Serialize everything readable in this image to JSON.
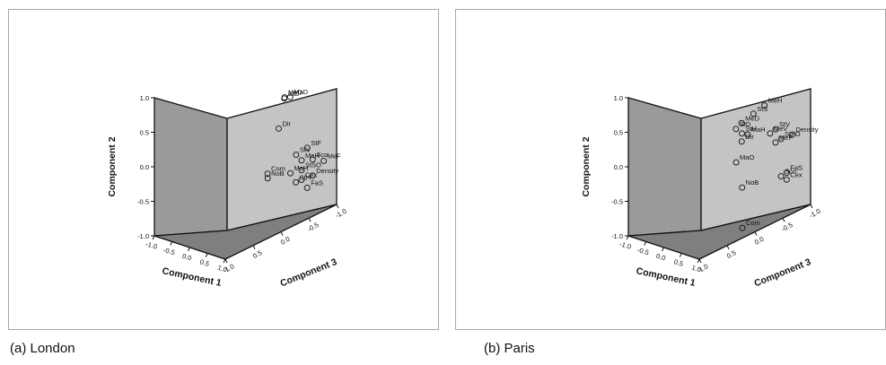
{
  "chart_data": [
    {
      "type": "scatter",
      "caption": "(a) London",
      "xlabel": "Component 1",
      "ylabel": "Component 2",
      "zlabel": "Component 3",
      "xlim": [
        -1.0,
        1.0
      ],
      "ylim": [
        -1.0,
        1.0
      ],
      "zlim": [
        -1.0,
        1.0
      ],
      "yticks": [
        "-1.0",
        "-0.5",
        "0.0",
        "0.5",
        "1.0"
      ],
      "xticks": [
        "-1.0",
        "-0.5",
        "0.0",
        "0.5",
        "1.0"
      ],
      "zticks": [
        "1.0",
        "0.5",
        "0.0",
        "-0.5",
        "-1.0"
      ],
      "points": [
        {
          "label": "MeD",
          "x": -0.1,
          "y": 0.95,
          "z": -0.1
        },
        {
          "label": "MaD",
          "x": 0.1,
          "y": 0.97,
          "z": -0.2
        },
        {
          "label": "StD",
          "x": -0.3,
          "y": 0.9,
          "z": -0.1
        },
        {
          "label": "Dir",
          "x": -0.5,
          "y": 0.45,
          "z": 0.0
        },
        {
          "label": "Com",
          "x": -0.7,
          "y": -0.2,
          "z": 0.2
        },
        {
          "label": "NoB",
          "x": -0.6,
          "y": -0.25,
          "z": 0.2
        },
        {
          "label": "StV",
          "x": 0.6,
          "y": 0.2,
          "z": -0.3
        },
        {
          "label": "StF",
          "x": 0.7,
          "y": 0.28,
          "z": -0.5
        },
        {
          "label": "MeH",
          "x": 0.6,
          "y": 0.1,
          "z": -0.4
        },
        {
          "label": "Sco",
          "x": 0.75,
          "y": 0.1,
          "z": -0.6
        },
        {
          "label": "MeF",
          "x": 0.8,
          "y": 0.05,
          "z": -0.8
        },
        {
          "label": "MaH",
          "x": 0.3,
          "y": -0.1,
          "z": -0.2
        },
        {
          "label": "StSO",
          "x": 0.55,
          "y": -0.05,
          "z": -0.4
        },
        {
          "label": "StH",
          "x": 0.3,
          "y": -0.25,
          "z": -0.3
        },
        {
          "label": "Cex",
          "x": 0.5,
          "y": -0.2,
          "z": -0.4
        },
        {
          "label": "Density",
          "x": 0.65,
          "y": -0.15,
          "z": -0.6
        },
        {
          "label": "FaS",
          "x": 0.7,
          "y": -0.3,
          "z": -0.5
        }
      ]
    },
    {
      "type": "scatter",
      "caption": "(b) Paris",
      "xlabel": "Component 1",
      "ylabel": "Component 2",
      "zlabel": "Component 3",
      "xlim": [
        -1.0,
        1.0
      ],
      "ylim": [
        -1.0,
        1.0
      ],
      "zlim": [
        -1.0,
        1.0
      ],
      "yticks": [
        "-1.0",
        "-0.5",
        "0.0",
        "0.5",
        "1.0"
      ],
      "xticks": [
        "-1.0",
        "-0.5",
        "0.0",
        "0.5",
        "1.0"
      ],
      "zticks": [
        "1.0",
        "0.5",
        "0.0",
        "-0.5",
        "-1.0"
      ],
      "points": [
        {
          "label": "MeH",
          "x": 0.4,
          "y": 0.9,
          "z": -0.2
        },
        {
          "label": "StS",
          "x": 0.3,
          "y": 0.8,
          "z": 0.0
        },
        {
          "label": "MeD",
          "x": -0.6,
          "y": 0.55,
          "z": 0.2
        },
        {
          "label": "StH",
          "x": -0.3,
          "y": 0.45,
          "z": 0.2
        },
        {
          "label": "StD",
          "x": -0.8,
          "y": 0.45,
          "z": 0.3
        },
        {
          "label": "MaH",
          "x": -0.1,
          "y": 0.45,
          "z": 0.1
        },
        {
          "label": "Dir",
          "x": -0.5,
          "y": 0.3,
          "z": 0.2
        },
        {
          "label": "StV",
          "x": 0.6,
          "y": 0.55,
          "z": -0.4
        },
        {
          "label": "MeV",
          "x": 0.55,
          "y": 0.5,
          "z": -0.3
        },
        {
          "label": "Density",
          "x": 0.8,
          "y": 0.45,
          "z": -0.7
        },
        {
          "label": "StFO",
          "x": 0.65,
          "y": 0.4,
          "z": -0.5
        },
        {
          "label": "MeF",
          "x": 0.55,
          "y": 0.35,
          "z": -0.4
        },
        {
          "label": "MaO",
          "x": -0.6,
          "y": 0.0,
          "z": 0.3
        },
        {
          "label": "NoB",
          "x": -0.1,
          "y": -0.3,
          "z": 0.2
        },
        {
          "label": "Sco",
          "x": 0.6,
          "y": -0.15,
          "z": -0.5
        },
        {
          "label": "FaS",
          "x": 0.7,
          "y": -0.1,
          "z": -0.6
        },
        {
          "label": "Cex",
          "x": 0.7,
          "y": -0.2,
          "z": -0.6
        },
        {
          "label": "Com",
          "x": 0.1,
          "y": -0.85,
          "z": 0.2
        }
      ]
    }
  ]
}
